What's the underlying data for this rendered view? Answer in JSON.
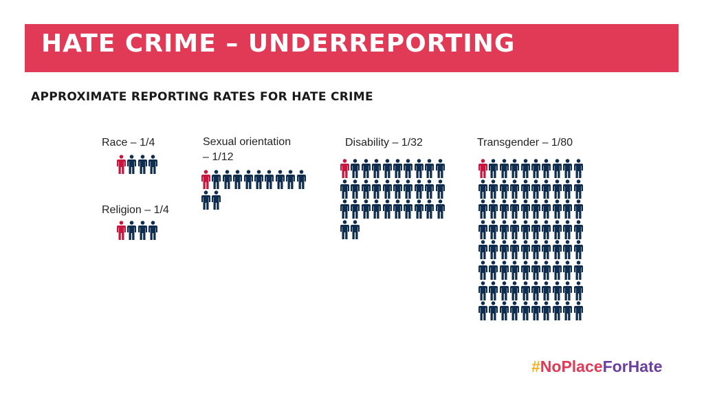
{
  "header": {
    "title": "Hate crime – underreporting"
  },
  "subtitle": "Approximate reporting rates for hate crime",
  "colors": {
    "banner": "#e03a57",
    "reported": "#c8163f",
    "unreported": "#0f2d4f"
  },
  "groups": [
    {
      "id": "race",
      "label": "Race – 1/4",
      "label_lines": [
        "Race – 1/4"
      ],
      "reported": 1,
      "total": 4,
      "icon": "person-icon"
    },
    {
      "id": "religion",
      "label": "Religion – 1/4",
      "label_lines": [
        "Religion – 1/4"
      ],
      "reported": 1,
      "total": 4,
      "icon": "person-icon"
    },
    {
      "id": "sexual-orientation",
      "label": "Sexual orientation – 1/12",
      "label_lines": [
        "Sexual orientation",
        "– 1/12"
      ],
      "reported": 1,
      "total": 12,
      "icon": "person-icon"
    },
    {
      "id": "disability",
      "label": "Disability – 1/32",
      "label_lines": [
        "Disability – 1/32"
      ],
      "reported": 1,
      "total": 32,
      "icon": "person-icon"
    },
    {
      "id": "transgender",
      "label": "Transgender – 1/80",
      "label_lines": [
        "Transgender – 1/80"
      ],
      "reported": 1,
      "total": 80,
      "icon": "person-icon"
    }
  ],
  "footer": {
    "hashtag_hash": "#",
    "hashtag_part1": "NoPlace",
    "hashtag_part2": "ForHate"
  }
}
